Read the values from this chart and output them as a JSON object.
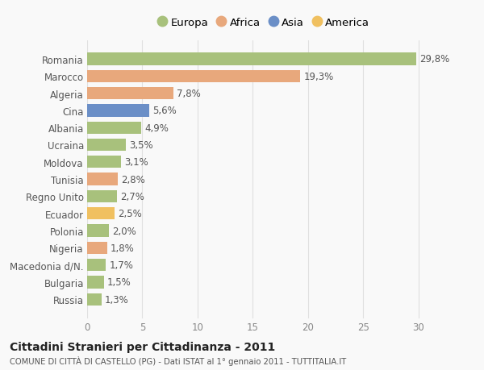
{
  "categories": [
    "Romania",
    "Marocco",
    "Algeria",
    "Cina",
    "Albania",
    "Ucraina",
    "Moldova",
    "Tunisia",
    "Regno Unito",
    "Ecuador",
    "Polonia",
    "Nigeria",
    "Macedonia d/N.",
    "Bulgaria",
    "Russia"
  ],
  "values": [
    29.8,
    19.3,
    7.8,
    5.6,
    4.9,
    3.5,
    3.1,
    2.8,
    2.7,
    2.5,
    2.0,
    1.8,
    1.7,
    1.5,
    1.3
  ],
  "labels": [
    "29,8%",
    "19,3%",
    "7,8%",
    "5,6%",
    "4,9%",
    "3,5%",
    "3,1%",
    "2,8%",
    "2,7%",
    "2,5%",
    "2,0%",
    "1,8%",
    "1,7%",
    "1,5%",
    "1,3%"
  ],
  "bar_colors": [
    "#a8c17c",
    "#e8a87c",
    "#e8a87c",
    "#6b8fc7",
    "#a8c17c",
    "#a8c17c",
    "#a8c17c",
    "#e8a87c",
    "#a8c17c",
    "#f0c060",
    "#a8c17c",
    "#e8a87c",
    "#a8c17c",
    "#a8c17c",
    "#a8c17c"
  ],
  "legend": [
    {
      "label": "Europa",
      "color": "#a8c17c"
    },
    {
      "label": "Africa",
      "color": "#e8a87c"
    },
    {
      "label": "Asia",
      "color": "#6b8fc7"
    },
    {
      "label": "America",
      "color": "#f0c060"
    }
  ],
  "xlim": [
    0,
    32
  ],
  "xticks": [
    0,
    5,
    10,
    15,
    20,
    25,
    30
  ],
  "title_line1": "Cittadini Stranieri per Cittadinanza - 2011",
  "title_line2": "COMUNE DI CITTÀ DI CASTELLO (PG) - Dati ISTAT al 1° gennaio 2011 - TUTTITALIA.IT",
  "background_color": "#f9f9f9",
  "grid_color": "#e0e0e0",
  "bar_height": 0.72,
  "label_fontsize": 8.5,
  "tick_fontsize": 8.5,
  "legend_fontsize": 9.5
}
